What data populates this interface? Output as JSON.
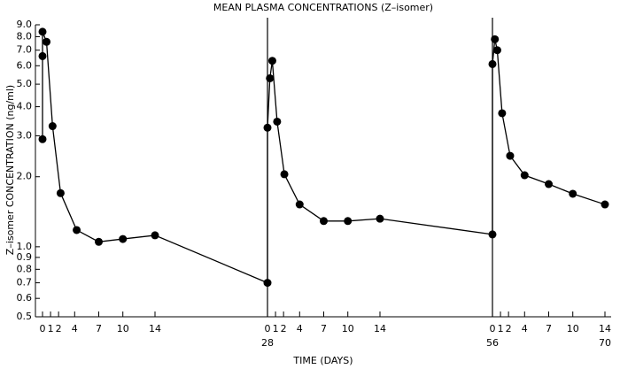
{
  "chart_data": {
    "type": "line",
    "title": "MEAN PLASMA CONCENTRATIONS (Z–isomer)",
    "xlabel": "TIME (DAYS)",
    "ylabel": "Z–isomer CONCENTRATION (ng/ml)",
    "x": [
      0,
      0,
      0,
      0.5,
      1.25,
      2.25,
      4.25,
      7,
      10,
      14,
      28,
      28,
      28.3,
      28.6,
      29.2,
      30.1,
      32,
      35,
      38,
      42,
      56,
      56,
      56.3,
      56.6,
      57.2,
      58.2,
      60,
      63,
      66,
      70
    ],
    "series": [
      {
        "name": "Z–isomer",
        "color": "#000000",
        "values": [
          2.9,
          6.6,
          8.4,
          7.6,
          3.3,
          1.7,
          1.18,
          1.05,
          1.08,
          1.12,
          0.7,
          3.25,
          5.3,
          6.3,
          3.45,
          2.05,
          1.52,
          1.29,
          1.29,
          1.32,
          1.13,
          6.1,
          7.8,
          7.0,
          3.75,
          2.46,
          2.03,
          1.86,
          1.69,
          1.52
        ]
      }
    ],
    "xlim": [
      0,
      70
    ],
    "xticks": [
      0,
      1,
      2,
      4,
      7,
      10,
      14,
      {
        "value": 28,
        "label": "0"
      },
      {
        "value": 29,
        "label": "1"
      },
      {
        "value": 30,
        "label": "2"
      },
      {
        "value": 32,
        "label": "4"
      },
      {
        "value": 35,
        "label": "7"
      },
      {
        "value": 38,
        "label": "10"
      },
      {
        "value": 42,
        "label": "14"
      },
      {
        "value": 56,
        "label": "0"
      },
      {
        "value": 57,
        "label": "1"
      },
      {
        "value": 58,
        "label": "2"
      },
      {
        "value": 60,
        "label": "4"
      },
      {
        "value": 63,
        "label": "7"
      },
      {
        "value": 66,
        "label": "10"
      },
      {
        "value": 70,
        "label": "14"
      }
    ],
    "xticks_secondary": [
      28,
      56,
      70
    ],
    "vlines": [
      28,
      56
    ],
    "ylim": [
      0.5,
      9
    ],
    "yscale": "log",
    "yticks": [
      0.5,
      0.6,
      0.7,
      0.8,
      0.9,
      {
        "value": 1,
        "label": "1.0"
      },
      {
        "value": 2,
        "label": "2.0"
      },
      {
        "value": 3,
        "label": "3.0"
      },
      {
        "value": 4,
        "label": "4.0"
      },
      {
        "value": 5,
        "label": "5.0"
      },
      {
        "value": 6,
        "label": "6.0"
      },
      {
        "value": 7,
        "label": "7.0"
      },
      {
        "value": 8,
        "label": "8.0"
      },
      {
        "value": 9,
        "label": "9.0"
      }
    ]
  }
}
